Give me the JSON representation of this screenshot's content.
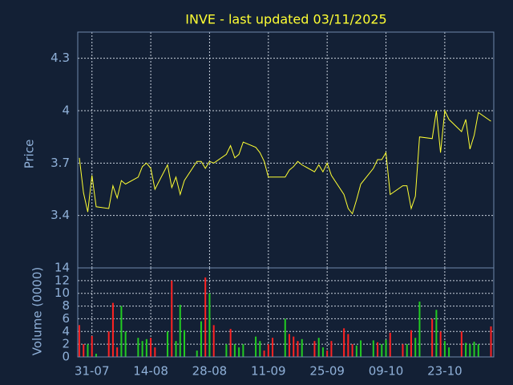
{
  "chart_data": [
    {
      "type": "line",
      "title": "INVE - last updated 03/11/2025",
      "ylabel": "Price",
      "color": "#ffff33",
      "x": [
        "28-07",
        "29-07",
        "30-07",
        "31-07",
        "01-08",
        "04-08",
        "05-08",
        "06-08",
        "07-08",
        "08-08",
        "11-08",
        "12-08",
        "13-08",
        "14-08",
        "15-08",
        "18-08",
        "19-08",
        "20-08",
        "21-08",
        "22-08",
        "25-08",
        "26-08",
        "27-08",
        "28-08",
        "29-08",
        "01-09",
        "02-09",
        "03-09",
        "04-09",
        "05-09",
        "08-09",
        "09-09",
        "10-09",
        "11-09",
        "12-09",
        "15-09",
        "16-09",
        "17-09",
        "18-09",
        "19-09",
        "22-09",
        "23-09",
        "24-09",
        "25-09",
        "26-09",
        "29-09",
        "30-09",
        "01-10",
        "02-10",
        "03-10",
        "06-10",
        "07-10",
        "08-10",
        "09-10",
        "10-10",
        "13-10",
        "14-10",
        "15-10",
        "16-10",
        "17-10",
        "20-10",
        "21-10",
        "22-10",
        "23-10",
        "24-10",
        "27-10",
        "28-10",
        "29-10",
        "30-10",
        "31-10",
        "03-11"
      ],
      "values": [
        3.73,
        3.53,
        3.42,
        3.63,
        3.45,
        3.44,
        3.57,
        3.5,
        3.6,
        3.58,
        3.62,
        3.68,
        3.7,
        3.67,
        3.55,
        3.69,
        3.56,
        3.62,
        3.52,
        3.6,
        3.71,
        3.71,
        3.67,
        3.71,
        3.7,
        3.75,
        3.8,
        3.73,
        3.75,
        3.82,
        3.79,
        3.76,
        3.71,
        3.62,
        3.62,
        3.62,
        3.66,
        3.68,
        3.71,
        3.69,
        3.65,
        3.69,
        3.65,
        3.7,
        3.63,
        3.52,
        3.44,
        3.41,
        3.49,
        3.58,
        3.67,
        3.72,
        3.72,
        3.76,
        3.52,
        3.57,
        3.57,
        3.44,
        3.51,
        3.85,
        3.84,
        4.0,
        3.76,
        4.0,
        3.95,
        3.88,
        3.95,
        3.78,
        3.86,
        3.99,
        3.94
      ],
      "ylim": [
        3.1,
        4.45
      ],
      "yticks": [
        3.4,
        3.7,
        4,
        4.3
      ],
      "grid": true
    },
    {
      "type": "bar",
      "ylabel": "Volume (0000)",
      "xticks": [
        "31-07",
        "14-08",
        "28-08",
        "11-09",
        "25-09",
        "09-10",
        "23-10"
      ],
      "values": [
        5,
        2,
        2,
        3.3,
        0.5,
        4,
        8.5,
        1.5,
        8,
        4,
        3,
        2.5,
        2.8,
        3,
        1.5,
        4,
        12,
        2.5,
        8.2,
        4.2,
        1,
        5.6,
        12.5,
        10,
        5,
        2,
        4.4,
        2,
        1.5,
        2,
        3.2,
        2.5,
        1,
        2,
        3,
        6,
        3.6,
        3.2,
        2.5,
        2.8,
        2.5,
        3,
        1.5,
        1,
        2.5,
        4.5,
        3.6,
        2,
        1.8,
        2.6,
        2.6,
        2.3,
        2,
        2.7,
        3.8,
        2,
        2,
        4.2,
        3,
        8.7,
        6,
        7.4,
        4,
        2.5,
        1.5,
        4,
        2.2,
        2,
        2.4,
        2,
        4.8
      ],
      "colors": [
        "#ff2222",
        "#ff2222",
        "#22cc22",
        "#ff2222",
        "#22cc22",
        "#ff2222",
        "#ff2222",
        "#ff2222",
        "#22cc22",
        "#22cc22",
        "#22cc22",
        "#22cc22",
        "#22cc22",
        "#ff2222",
        "#ff2222",
        "#22cc22",
        "#ff2222",
        "#22cc22",
        "#22cc22",
        "#22cc22",
        "#22cc22",
        "#22cc22",
        "#ff2222",
        "#22cc22",
        "#ff2222",
        "#22cc22",
        "#ff2222",
        "#22cc22",
        "#22cc22",
        "#22cc22",
        "#22cc22",
        "#22cc22",
        "#ff2222",
        "#ff2222",
        "#ff2222",
        "#22cc22",
        "#ff2222",
        "#ff2222",
        "#ff2222",
        "#22cc22",
        "#ff2222",
        "#22cc22",
        "#22cc22",
        "#ff2222",
        "#ff2222",
        "#ff2222",
        "#ff2222",
        "#ff2222",
        "#22cc22",
        "#22cc22",
        "#22cc22",
        "#ff2222",
        "#22cc22",
        "#22cc22",
        "#ff2222",
        "#ff2222",
        "#22cc22",
        "#ff2222",
        "#22cc22",
        "#22cc22",
        "#ff2222",
        "#22cc22",
        "#ff2222",
        "#22cc22",
        "#22cc22",
        "#ff2222",
        "#22cc22",
        "#22cc22",
        "#22cc22",
        "#22cc22",
        "#ff2222"
      ],
      "ylim": [
        0,
        14
      ],
      "yticks": [
        0,
        2,
        4,
        6,
        8,
        10,
        12,
        14
      ],
      "grid": true
    }
  ]
}
